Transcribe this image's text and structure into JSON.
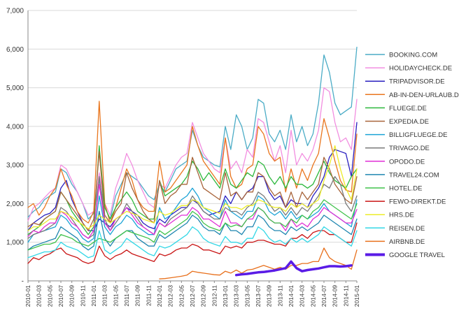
{
  "chart_data": {
    "type": "line",
    "title": "",
    "xlabel": "",
    "ylabel": "",
    "ylim": [
      0,
      7000
    ],
    "y_ticks": [
      0,
      1000,
      2000,
      3000,
      4000,
      5000,
      6000,
      7000
    ],
    "y_tick_labels": [
      "-",
      "1,000",
      "2,000",
      "3,000",
      "4,000",
      "5,000",
      "6,000",
      "7,000"
    ],
    "grid": "horizontal",
    "legend_position": "right",
    "x": [
      "2010-01",
      "2010-02",
      "2010-03",
      "2010-04",
      "2010-05",
      "2010-06",
      "2010-07",
      "2010-08",
      "2010-09",
      "2010-10",
      "2010-11",
      "2010-12",
      "2011-01",
      "2011-02",
      "2011-03",
      "2011-04",
      "2011-05",
      "2011-06",
      "2011-07",
      "2011-08",
      "2011-09",
      "2011-10",
      "2011-11",
      "2011-12",
      "2012-01",
      "2012-02",
      "2012-03",
      "2012-04",
      "2012-05",
      "2012-06",
      "2012-07",
      "2012-08",
      "2012-09",
      "2012-10",
      "2012-11",
      "2012-12",
      "2013-01",
      "2013-02",
      "2013-03",
      "2013-04",
      "2013-05",
      "2013-06",
      "2013-07",
      "2013-08",
      "2013-09",
      "2013-10",
      "2013-11",
      "2013-12",
      "2014-01",
      "2014-02",
      "2014-03",
      "2014-04",
      "2014-05",
      "2014-06",
      "2014-07",
      "2014-08",
      "2014-09",
      "2014-10",
      "2014-11",
      "2014-12",
      "2015-01"
    ],
    "x_tick_labels": [
      "2010-01",
      "2010-03",
      "2010-05",
      "2010-07",
      "2010-09",
      "2010-11",
      "2011-01",
      "2011-03",
      "2011-05",
      "2011-07",
      "2011-09",
      "2011-11",
      "2012-01",
      "2012-03",
      "2012-05",
      "2012-07",
      "2012-09",
      "2012-11",
      "2013-01",
      "2013-03",
      "2013-05",
      "2013-07",
      "2013-09",
      "2013-11",
      "2014-01",
      "2014-03",
      "2014-05",
      "2014-07",
      "2014-09",
      "2014-11",
      "2015-01"
    ],
    "series": [
      {
        "name": "BOOKING.COM",
        "color": "#4bacc6",
        "width": 1.3,
        "values": [
          1650,
          1800,
          1900,
          2100,
          2200,
          2300,
          2900,
          2800,
          2500,
          2300,
          2000,
          1600,
          1750,
          2600,
          1900,
          1600,
          2200,
          2500,
          2800,
          2700,
          2600,
          2400,
          2200,
          2100,
          2500,
          2300,
          2600,
          2900,
          3000,
          3100,
          3900,
          3500,
          3200,
          3100,
          3000,
          2950,
          4000,
          3400,
          4300,
          4000,
          3400,
          3700,
          4700,
          4600,
          3800,
          3600,
          3900,
          3400,
          4300,
          3600,
          4000,
          3500,
          3800,
          4600,
          5850,
          5400,
          4600,
          4300,
          4400,
          4500,
          6050
        ]
      },
      {
        "name": "HOLIDAYCHECK.DE",
        "color": "#f28ee0",
        "width": 1.3,
        "values": [
          1550,
          1900,
          2000,
          2150,
          2300,
          2400,
          3000,
          2900,
          2600,
          2300,
          2000,
          1700,
          1800,
          2800,
          2000,
          1700,
          2400,
          2800,
          3300,
          3000,
          2600,
          2300,
          2000,
          1900,
          2500,
          2400,
          2700,
          3000,
          3200,
          3300,
          4100,
          3700,
          3300,
          3100,
          2900,
          2800,
          3700,
          2900,
          3100,
          2800,
          3400,
          3200,
          4200,
          4100,
          3600,
          3100,
          3500,
          2800,
          3900,
          3000,
          3300,
          3100,
          3400,
          3900,
          5000,
          4900,
          4100,
          3600,
          3700,
          3400,
          4700
        ]
      },
      {
        "name": "TRIPADVISOR.DE",
        "color": "#2a1fbf",
        "width": 1.3,
        "values": [
          1300,
          1500,
          1600,
          1700,
          1750,
          1900,
          2400,
          2600,
          2100,
          1800,
          1500,
          1300,
          1300,
          1600,
          1500,
          1400,
          1600,
          1700,
          1900,
          1800,
          1700,
          1500,
          1400,
          1350,
          1600,
          1500,
          1700,
          1800,
          1900,
          1900,
          2100,
          2000,
          1800,
          1700,
          1750,
          1800,
          2200,
          2000,
          2300,
          2100,
          2300,
          2400,
          2700,
          2700,
          2300,
          2100,
          2200,
          1900,
          2100,
          2000,
          2000,
          1900,
          2200,
          2400,
          2700,
          3200,
          3400,
          3350,
          3300,
          2700,
          4100
        ]
      },
      {
        "name": "AB-IN-DEN-URLAUB.DE",
        "color": "#e9761e",
        "width": 1.3,
        "values": [
          1900,
          2000,
          1700,
          1900,
          2200,
          2400,
          2900,
          2500,
          2200,
          1800,
          1600,
          1500,
          1800,
          4650,
          2000,
          1500,
          1900,
          2400,
          2900,
          2600,
          2100,
          1900,
          1800,
          1800,
          3100,
          2300,
          2400,
          2600,
          2800,
          3000,
          4000,
          3500,
          3100,
          2900,
          2700,
          2500,
          3700,
          2700,
          2400,
          2500,
          2900,
          3000,
          4000,
          3800,
          3300,
          3100,
          3200,
          2300,
          2900,
          2400,
          2900,
          2600,
          3000,
          3300,
          4200,
          3700,
          3100,
          2600,
          2350,
          2300,
          3800
        ]
      },
      {
        "name": "FLUEGE.DE",
        "color": "#2db83d",
        "width": 1.3,
        "values": [
          1200,
          1300,
          1400,
          1600,
          1700,
          1800,
          2300,
          2100,
          1800,
          1600,
          1400,
          1200,
          1400,
          3500,
          1900,
          1600,
          1900,
          2100,
          2300,
          2100,
          1800,
          1700,
          1600,
          1600,
          2600,
          2200,
          2300,
          2400,
          2500,
          2700,
          3100,
          2900,
          2600,
          2800,
          2600,
          2400,
          2900,
          2500,
          2400,
          2600,
          2800,
          2700,
          3100,
          3000,
          2700,
          2500,
          2700,
          2400,
          2700,
          2500,
          2500,
          2400,
          2500,
          2800,
          3100,
          2800,
          2600,
          2500,
          2400,
          2700,
          2900
        ]
      },
      {
        "name": "EXPEDIA.DE",
        "color": "#a8643a",
        "width": 1.3,
        "values": [
          1400,
          1500,
          1450,
          1600,
          1700,
          1800,
          2300,
          2100,
          1900,
          1700,
          1500,
          1300,
          1600,
          3350,
          1700,
          1500,
          1800,
          2000,
          2800,
          2400,
          2100,
          1800,
          1600,
          1500,
          2600,
          2000,
          2200,
          2300,
          2500,
          2500,
          3200,
          2800,
          2400,
          2300,
          2200,
          2100,
          2800,
          2200,
          2300,
          2100,
          2300,
          2300,
          2800,
          2700,
          2400,
          2200,
          2300,
          1900,
          2300,
          1900,
          2300,
          2100,
          2300,
          2500,
          3200,
          2900,
          2500,
          2300,
          2100,
          2000,
          2700
        ]
      },
      {
        "name": "BILLIGFLUEGE.DE",
        "color": "#1ba3d6",
        "width": 1.3,
        "values": [
          1000,
          1200,
          1250,
          1300,
          1350,
          1400,
          1700,
          1600,
          1400,
          1300,
          1100,
          1000,
          1100,
          2200,
          1400,
          1200,
          1400,
          1500,
          1700,
          1600,
          1400,
          1300,
          1200,
          1200,
          1900,
          1600,
          1700,
          1900,
          2100,
          2200,
          2400,
          2200,
          1900,
          1800,
          1700,
          1600,
          2100,
          1800,
          1700,
          1600,
          1800,
          1800,
          2200,
          2100,
          1800,
          1700,
          1800,
          1600,
          1800,
          1600,
          1700,
          1600,
          1700,
          1800,
          2000,
          1800,
          1700,
          1600,
          1500,
          1400,
          2100
        ]
      },
      {
        "name": "TRIVAGO.DE",
        "color": "#7a7a7a",
        "width": 1.3,
        "values": [
          1100,
          1200,
          1250,
          1300,
          1400,
          1500,
          1900,
          1800,
          1600,
          1400,
          1200,
          1100,
          1200,
          2700,
          1600,
          1300,
          1500,
          1700,
          2000,
          1800,
          1600,
          1400,
          1300,
          1200,
          1500,
          1400,
          1600,
          1700,
          1800,
          1900,
          2200,
          2000,
          1800,
          1700,
          1600,
          1600,
          1900,
          1800,
          1800,
          1700,
          1900,
          2000,
          2300,
          2200,
          2000,
          1800,
          1900,
          1700,
          1900,
          1700,
          1900,
          1800,
          2000,
          2200,
          2500,
          2400,
          2700,
          2500,
          2000,
          1800,
          2200
        ]
      },
      {
        "name": "OPODO.DE",
        "color": "#e02ed6",
        "width": 1.3,
        "values": [
          1150,
          1300,
          1250,
          1400,
          1500,
          1500,
          1800,
          1700,
          1500,
          1400,
          1200,
          1100,
          1300,
          2500,
          1500,
          1300,
          1600,
          1700,
          1900,
          1700,
          1500,
          1400,
          1300,
          1200,
          1500,
          1400,
          1500,
          1600,
          1700,
          1700,
          1900,
          1800,
          1600,
          1600,
          1500,
          1400,
          1800,
          1500,
          1500,
          1400,
          1600,
          1600,
          1900,
          1800,
          1600,
          1500,
          1500,
          1300,
          1600,
          1400,
          1500,
          1400,
          1600,
          1700,
          1900,
          1800,
          1700,
          1600,
          1500,
          1500,
          1850
        ]
      },
      {
        "name": "TRAVEL24.COM",
        "color": "#1f86b0",
        "width": 1.3,
        "values": [
          800,
          900,
          950,
          1000,
          1050,
          1100,
          1400,
          1300,
          1200,
          1100,
          900,
          800,
          900,
          1800,
          1100,
          900,
          1100,
          1200,
          1300,
          1300,
          1100,
          1000,
          900,
          900,
          1200,
          1100,
          1200,
          1300,
          1400,
          1500,
          1700,
          1600,
          1400,
          1300,
          1300,
          1200,
          1500,
          1300,
          1300,
          1200,
          1400,
          1400,
          1700,
          1600,
          1400,
          1300,
          1300,
          1200,
          1400,
          1300,
          1400,
          1300,
          1400,
          1500,
          1700,
          1600,
          1500,
          1400,
          1300,
          1200,
          1600
        ]
      },
      {
        "name": "HOTEL.DE",
        "color": "#40c24c",
        "width": 1.3,
        "values": [
          800,
          850,
          900,
          950,
          950,
          1000,
          1200,
          1150,
          1100,
          1000,
          950,
          900,
          1000,
          1100,
          1050,
          1000,
          1100,
          1200,
          1300,
          1250,
          1200,
          1150,
          1100,
          1000,
          1300,
          1200,
          1300,
          1400,
          1500,
          1600,
          1800,
          1700,
          1500,
          1400,
          1350,
          1300,
          1500,
          1400,
          1450,
          1400,
          1600,
          1700,
          1900,
          1800,
          1600,
          1500,
          1500,
          1400,
          1600,
          1500,
          1700,
          1600,
          1800,
          1900,
          2100,
          2000,
          1900,
          1800,
          1700,
          1600,
          2000
        ]
      },
      {
        "name": "FEWO-DIREKT.DE",
        "color": "#c91515",
        "width": 1.3,
        "values": [
          450,
          600,
          550,
          650,
          700,
          800,
          850,
          700,
          650,
          600,
          500,
          450,
          500,
          900,
          650,
          550,
          650,
          700,
          800,
          700,
          650,
          600,
          550,
          500,
          700,
          650,
          700,
          800,
          850,
          850,
          950,
          900,
          800,
          800,
          750,
          700,
          900,
          850,
          900,
          850,
          1000,
          1000,
          1050,
          1050,
          1000,
          950,
          950,
          900,
          1100,
          1100,
          1200,
          1100,
          1250,
          1300,
          1300,
          1200,
          1200,
          1100,
          1000,
          1000,
          1500
        ]
      },
      {
        "name": "HRS.DE",
        "color": "#ecec2a",
        "width": 1.3,
        "values": [
          1300,
          1400,
          1400,
          1500,
          1600,
          1600,
          1800,
          1750,
          1650,
          1550,
          1450,
          1350,
          1450,
          1700,
          1600,
          1500,
          1600,
          1700,
          1800,
          1750,
          1700,
          1600,
          1550,
          1500,
          1800,
          1700,
          1750,
          1850,
          1950,
          1950,
          2100,
          2050,
          1900,
          1850,
          1800,
          1750,
          2000,
          1900,
          1900,
          1850,
          1950,
          1950,
          2100,
          2050,
          1950,
          1900,
          1900,
          1800,
          2000,
          1900,
          2000,
          1900,
          2000,
          2100,
          2600,
          3000,
          3500,
          2900,
          2400,
          2100,
          2900
        ]
      },
      {
        "name": "REISEN.DE",
        "color": "#34d7e6",
        "width": 1.3,
        "values": [
          600,
          650,
          700,
          750,
          750,
          800,
          1000,
          900,
          850,
          800,
          700,
          600,
          650,
          1300,
          800,
          700,
          800,
          900,
          1100,
          1000,
          900,
          800,
          700,
          650,
          900,
          850,
          900,
          1000,
          1100,
          1200,
          1400,
          1300,
          1100,
          1000,
          950,
          900,
          1150,
          1000,
          1000,
          950,
          1100,
          1100,
          1400,
          1300,
          1100,
          1000,
          1050,
          950,
          1100,
          1000,
          1100,
          1000,
          1100,
          1200,
          1400,
          1300,
          1200,
          1100,
          1000,
          900,
          1300
        ]
      },
      {
        "name": "AIRBNB.DE",
        "color": "#e8701c",
        "width": 1.3,
        "values": [
          null,
          null,
          null,
          null,
          null,
          null,
          null,
          null,
          null,
          null,
          null,
          null,
          null,
          null,
          null,
          null,
          null,
          null,
          null,
          null,
          null,
          null,
          null,
          null,
          50,
          60,
          80,
          100,
          120,
          150,
          250,
          220,
          200,
          180,
          160,
          150,
          250,
          200,
          280,
          200,
          280,
          300,
          350,
          400,
          350,
          300,
          350,
          300,
          400,
          400,
          450,
          450,
          500,
          500,
          850,
          600,
          500,
          450,
          400,
          300,
          800
        ]
      },
      {
        "name": "GOOGLE TRAVEL",
        "color": "#5a1be6",
        "width": 3.5,
        "values": [
          null,
          null,
          null,
          null,
          null,
          null,
          null,
          null,
          null,
          null,
          null,
          null,
          null,
          null,
          null,
          null,
          null,
          null,
          null,
          null,
          null,
          null,
          null,
          null,
          null,
          null,
          null,
          null,
          null,
          null,
          null,
          null,
          null,
          null,
          null,
          null,
          null,
          null,
          150,
          170,
          180,
          200,
          220,
          230,
          250,
          270,
          300,
          330,
          500,
          330,
          250,
          280,
          300,
          320,
          350,
          380,
          380,
          370,
          380,
          400,
          null
        ]
      }
    ]
  }
}
